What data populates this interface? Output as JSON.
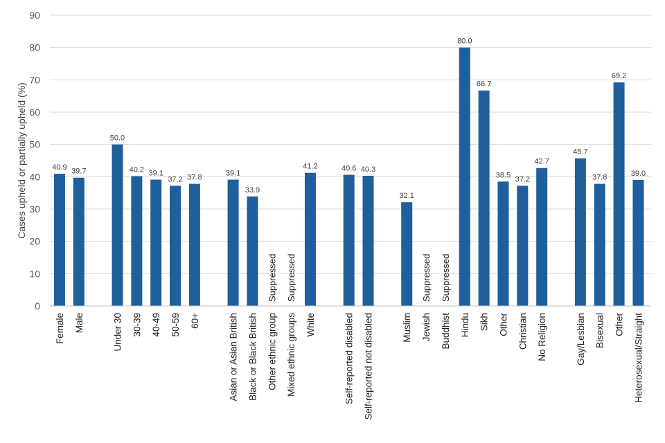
{
  "chart_data": {
    "type": "bar",
    "ylabel": "Cases upheld or partially upheld (%)",
    "xlabel": "",
    "ylim": [
      0,
      90
    ],
    "yticks": [
      0,
      10,
      20,
      30,
      40,
      50,
      60,
      70,
      80,
      90
    ],
    "grid": true,
    "legend": "none",
    "colors": {
      "bar": "#1f5f9b",
      "grid": "#d9d9d9",
      "axis": "#bfbfbf"
    },
    "groups": [
      {
        "categories": [
          "Female",
          "Male"
        ],
        "values": [
          40.9,
          39.7
        ]
      },
      {
        "categories": [
          "Under 30",
          "30-39",
          "40-49",
          "50-59",
          "60+"
        ],
        "values": [
          50.0,
          40.2,
          39.1,
          37.2,
          37.8
        ]
      },
      {
        "categories": [
          "Asian or Asian British",
          "Black or Black British",
          "Other ethnic group",
          "Mixed ethnic groups",
          "White"
        ],
        "values": [
          39.1,
          33.9,
          "Suppressed",
          "Suppressed",
          41.2
        ]
      },
      {
        "categories": [
          "Self-reported disabled",
          "Self-reported not disabled"
        ],
        "values": [
          40.6,
          40.3
        ]
      },
      {
        "categories": [
          "Muslim",
          "Jewish",
          "Buddhist",
          "Hindu",
          "Sikh",
          "Other",
          "Christian",
          "No Religion"
        ],
        "values": [
          32.1,
          "Suppressed",
          "Suppressed",
          80.0,
          66.7,
          38.5,
          37.2,
          42.7
        ]
      },
      {
        "categories": [
          "Gay/Lesbian",
          "Bisexual",
          "Other",
          "Heterosexual/Straight"
        ],
        "values": [
          45.7,
          37.8,
          69.2,
          39.0
        ]
      }
    ]
  }
}
